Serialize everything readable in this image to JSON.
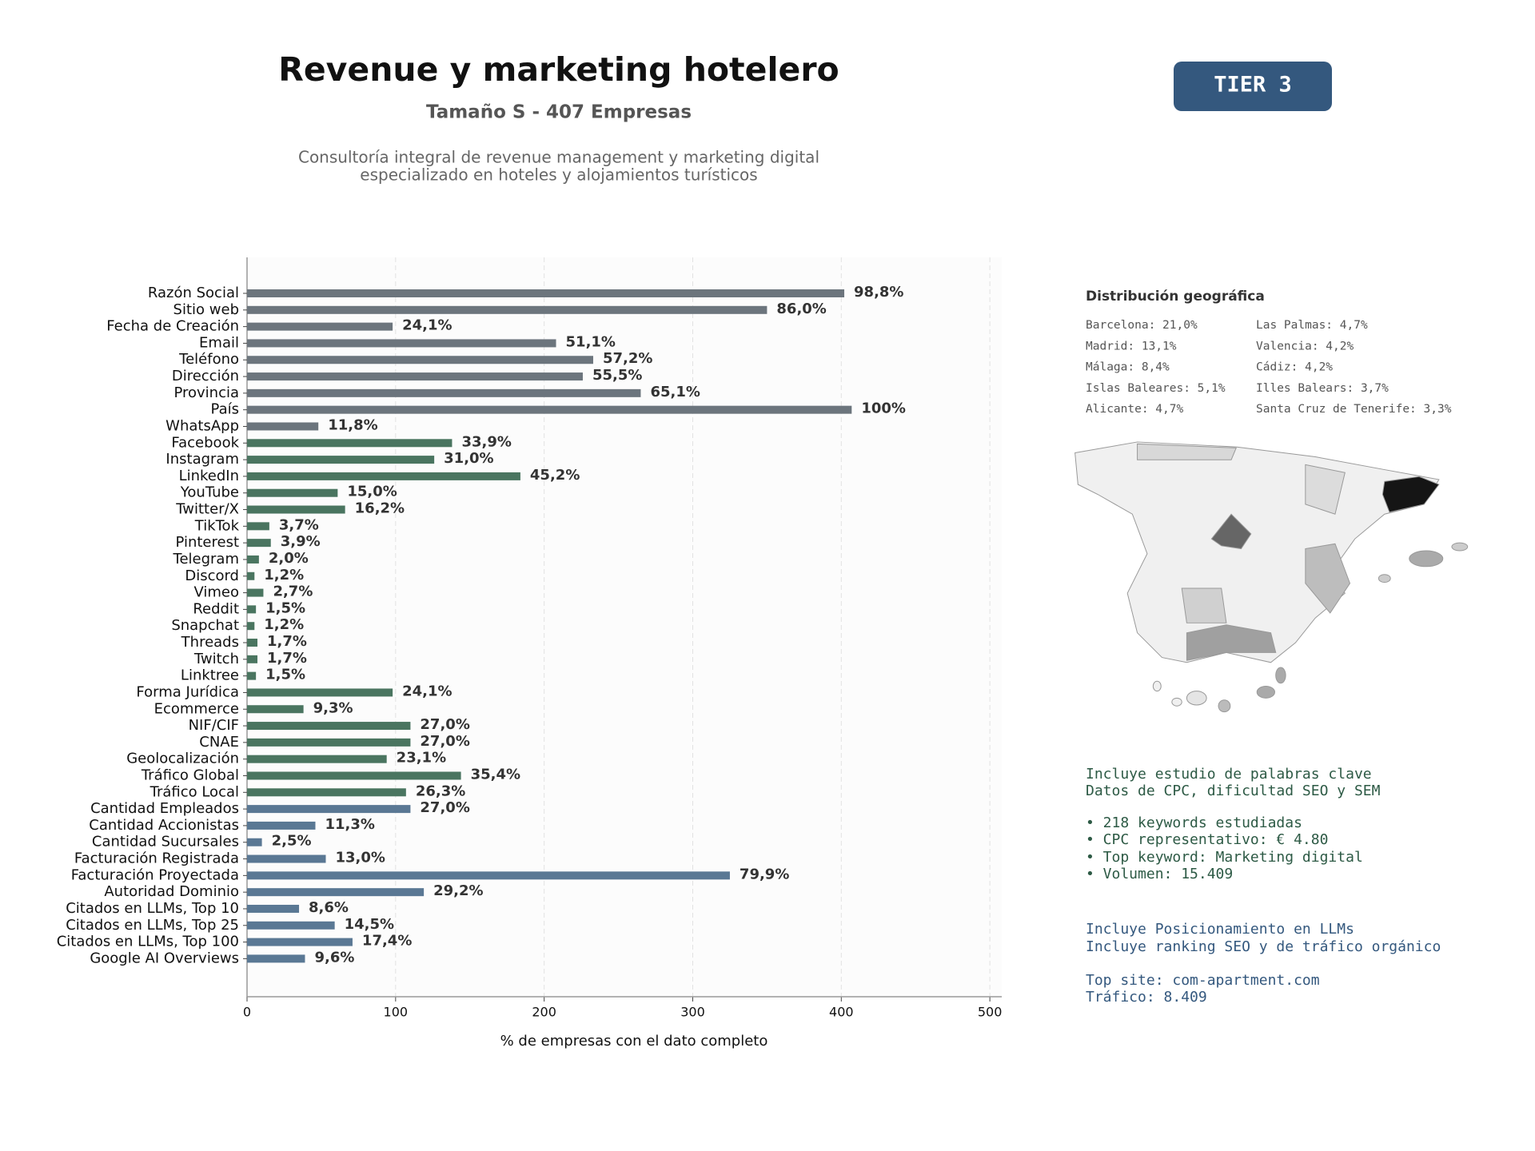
{
  "header": {
    "title": "Revenue y marketing hotelero",
    "subtitle": "Tamaño S - 407 Empresas",
    "description": [
      "Consultoría integral de revenue management y marketing digital",
      "especializado en hoteles y alojamientos turísticos"
    ],
    "badge": "TIER 3"
  },
  "chart_data": {
    "type": "bar",
    "orientation": "horizontal",
    "categories": [
      "Razón Social",
      "Sitio web",
      "Fecha de Creación",
      "Email",
      "Teléfono",
      "Dirección",
      "Provincia",
      "País",
      "WhatsApp",
      "Facebook",
      "Instagram",
      "LinkedIn",
      "YouTube",
      "Twitter/X",
      "TikTok",
      "Pinterest",
      "Telegram",
      "Discord",
      "Vimeo",
      "Reddit",
      "Snapchat",
      "Threads",
      "Twitch",
      "Linktree",
      "Forma Jurídica",
      "Ecommerce",
      "NIF/CIF",
      "CNAE",
      "Geolocalización",
      "Tráfico Global",
      "Tráfico Local",
      "Cantidad Empleados",
      "Cantidad Accionistas",
      "Cantidad Sucursales",
      "Facturación Registrada",
      "Facturación Proyectada",
      "Autoridad Dominio",
      "Citados en LLMs, Top 10",
      "Citados en LLMs, Top 25",
      "Citados en LLMs, Top 100",
      "Google AI Overviews"
    ],
    "values": [
      402,
      350,
      98,
      208,
      233,
      226,
      265,
      407,
      48,
      138,
      126,
      184,
      61,
      66,
      15,
      16,
      8,
      5,
      11,
      6,
      5,
      7,
      7,
      6,
      98,
      38,
      110,
      110,
      94,
      144,
      107,
      110,
      46,
      10,
      53,
      325,
      119,
      35,
      59,
      71,
      39
    ],
    "value_labels": [
      "98,8%",
      "86,0%",
      "24,1%",
      "51,1%",
      "57,2%",
      "55,5%",
      "65,1%",
      "100%",
      "11,8%",
      "33,9%",
      "31,0%",
      "45,2%",
      "15,0%",
      "16,2%",
      "3,7%",
      "3,9%",
      "2,0%",
      "1,2%",
      "2,7%",
      "1,5%",
      "1,2%",
      "1,7%",
      "1,7%",
      "1,5%",
      "24,1%",
      "9,3%",
      "27,0%",
      "27,0%",
      "23,1%",
      "35,4%",
      "26,3%",
      "27,0%",
      "11,3%",
      "2,5%",
      "13,0%",
      "79,9%",
      "29,2%",
      "8,6%",
      "14,5%",
      "17,4%",
      "9,6%"
    ],
    "colors": [
      "#6c757d",
      "#6c757d",
      "#6c757d",
      "#6c757d",
      "#6c757d",
      "#6c757d",
      "#6c757d",
      "#6c757d",
      "#6c757d",
      "#4a7560",
      "#4a7560",
      "#4a7560",
      "#4a7560",
      "#4a7560",
      "#4a7560",
      "#4a7560",
      "#4a7560",
      "#4a7560",
      "#4a7560",
      "#4a7560",
      "#4a7560",
      "#4a7560",
      "#4a7560",
      "#4a7560",
      "#4a7560",
      "#4a7560",
      "#4a7560",
      "#4a7560",
      "#4a7560",
      "#4a7560",
      "#4a7560",
      "#5a7894",
      "#5a7894",
      "#5a7894",
      "#5a7894",
      "#5a7894",
      "#5a7894",
      "#5a7894",
      "#5a7894",
      "#5a7894",
      "#5a7894"
    ],
    "xlabel": "% de empresas con el dato completo",
    "xlim": [
      0,
      508
    ],
    "xticks": [
      0,
      100,
      200,
      300,
      400,
      500
    ],
    "grid": true
  },
  "geo": {
    "title": "Distribución geográfica",
    "items": [
      "Barcelona: 21,0%",
      "Madrid: 13,1%",
      "Málaga: 8,4%",
      "Islas Baleares: 5,1%",
      "Alicante: 4,7%",
      "Las Palmas: 4,7%",
      "Valencia: 4,2%",
      "Cádiz: 4,2%",
      "Illes Balears: 3,7%",
      "Santa Cruz de Tenerife: 3,3%"
    ]
  },
  "seo": [
    "Incluye estudio de palabras clave",
    "Datos de CPC, dificultad SEO y SEM",
    "• 218 keywords estudiadas",
    "• CPC representativo: € 4.80",
    "• Top keyword: Marketing digital",
    "• Volumen: 15.409"
  ],
  "llm": [
    "Incluye Posicionamiento en LLMs",
    "Incluye ranking SEO y de tráfico orgánico",
    "Top site: com-apartment.com",
    "Tráfico: 8.409"
  ]
}
